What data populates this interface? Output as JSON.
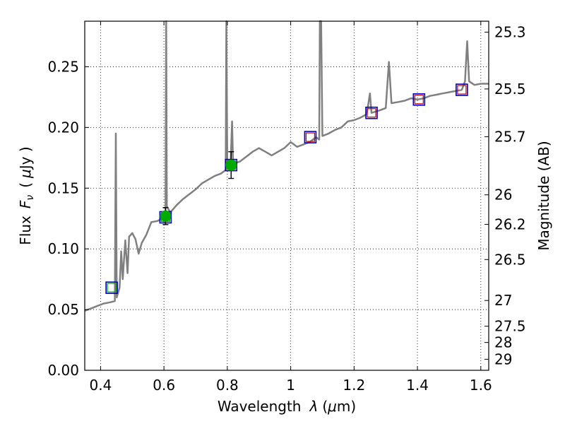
{
  "chart_data": {
    "type": "line",
    "xlabel": "Wavelength",
    "xlabel_symbol": "λ",
    "xlabel_unit_open": "(",
    "xlabel_unit_mu": "μ",
    "xlabel_unit_close": "m)",
    "ylabel": "Flux",
    "ylabel_symbol": "F",
    "ylabel_subscript": "ν",
    "ylabel_unit_open": "(",
    "ylabel_unit_mu": "μ",
    "ylabel_unit_close": "Jy )",
    "y2label": "Magnitude (AB)",
    "xlim": [
      0.35,
      1.625
    ],
    "ylim": [
      0.0,
      0.2875
    ],
    "grid": true,
    "x_ticks": [
      {
        "value": 0.4,
        "label": "0.4"
      },
      {
        "value": 0.6,
        "label": "0.6"
      },
      {
        "value": 0.8,
        "label": "0.8"
      },
      {
        "value": 1.0,
        "label": "1"
      },
      {
        "value": 1.2,
        "label": "1.2"
      },
      {
        "value": 1.4,
        "label": "1.4"
      },
      {
        "value": 1.6,
        "label": "1.6"
      }
    ],
    "y_ticks": [
      {
        "value": 0.0,
        "label": "0.00"
      },
      {
        "value": 0.05,
        "label": "0.05"
      },
      {
        "value": 0.1,
        "label": "0.10"
      },
      {
        "value": 0.15,
        "label": "0.15"
      },
      {
        "value": 0.2,
        "label": "0.20"
      },
      {
        "value": 0.25,
        "label": "0.25"
      }
    ],
    "y2_ticks": [
      {
        "flux": 0.2785,
        "label": "25.3"
      },
      {
        "flux": 0.2317,
        "label": "25.5"
      },
      {
        "flux": 0.1924,
        "label": "25.7"
      },
      {
        "flux": 0.1445,
        "label": "26"
      },
      {
        "flux": 0.1202,
        "label": "26.2"
      },
      {
        "flux": 0.0912,
        "label": "26.5"
      },
      {
        "flux": 0.0575,
        "label": "27"
      },
      {
        "flux": 0.0363,
        "label": "27.5"
      },
      {
        "flux": 0.0229,
        "label": "28"
      },
      {
        "flux": 0.0091,
        "label": "29"
      }
    ],
    "model_spectrum": {
      "name": "model SED",
      "color": "#808080",
      "points": [
        [
          0.35,
          0.049
        ],
        [
          0.37,
          0.051
        ],
        [
          0.39,
          0.053
        ],
        [
          0.41,
          0.055
        ],
        [
          0.43,
          0.056
        ],
        [
          0.445,
          0.057
        ],
        [
          0.448,
          0.195
        ],
        [
          0.451,
          0.06
        ],
        [
          0.46,
          0.068
        ],
        [
          0.465,
          0.098
        ],
        [
          0.47,
          0.075
        ],
        [
          0.478,
          0.107
        ],
        [
          0.485,
          0.08
        ],
        [
          0.49,
          0.11
        ],
        [
          0.5,
          0.113
        ],
        [
          0.51,
          0.108
        ],
        [
          0.52,
          0.096
        ],
        [
          0.53,
          0.105
        ],
        [
          0.545,
          0.112
        ],
        [
          0.56,
          0.122
        ],
        [
          0.58,
          0.123
        ],
        [
          0.6,
          0.126
        ],
        [
          0.605,
          0.13
        ],
        [
          0.607,
          0.2875
        ],
        [
          0.609,
          0.135
        ],
        [
          0.62,
          0.13
        ],
        [
          0.64,
          0.136
        ],
        [
          0.66,
          0.141
        ],
        [
          0.68,
          0.145
        ],
        [
          0.7,
          0.149
        ],
        [
          0.72,
          0.154
        ],
        [
          0.74,
          0.157
        ],
        [
          0.76,
          0.16
        ],
        [
          0.78,
          0.162
        ],
        [
          0.795,
          0.165
        ],
        [
          0.797,
          0.2875
        ],
        [
          0.8,
          0.166
        ],
        [
          0.81,
          0.168
        ],
        [
          0.815,
          0.205
        ],
        [
          0.818,
          0.17
        ],
        [
          0.84,
          0.172
        ],
        [
          0.86,
          0.176
        ],
        [
          0.88,
          0.18
        ],
        [
          0.9,
          0.183
        ],
        [
          0.92,
          0.18
        ],
        [
          0.94,
          0.177
        ],
        [
          0.96,
          0.18
        ],
        [
          0.98,
          0.183
        ],
        [
          1.0,
          0.188
        ],
        [
          1.02,
          0.184
        ],
        [
          1.04,
          0.186
        ],
        [
          1.06,
          0.188
        ],
        [
          1.08,
          0.192
        ],
        [
          1.09,
          0.19
        ],
        [
          1.092,
          0.2875
        ],
        [
          1.096,
          0.2875
        ],
        [
          1.1,
          0.193
        ],
        [
          1.12,
          0.195
        ],
        [
          1.14,
          0.198
        ],
        [
          1.16,
          0.2
        ],
        [
          1.18,
          0.205
        ],
        [
          1.2,
          0.206
        ],
        [
          1.22,
          0.208
        ],
        [
          1.24,
          0.211
        ],
        [
          1.25,
          0.228
        ],
        [
          1.255,
          0.212
        ],
        [
          1.28,
          0.214
        ],
        [
          1.3,
          0.216
        ],
        [
          1.31,
          0.254
        ],
        [
          1.318,
          0.22
        ],
        [
          1.34,
          0.221
        ],
        [
          1.36,
          0.222
        ],
        [
          1.38,
          0.224
        ],
        [
          1.4,
          0.223
        ],
        [
          1.42,
          0.224
        ],
        [
          1.44,
          0.226
        ],
        [
          1.46,
          0.227
        ],
        [
          1.48,
          0.228
        ],
        [
          1.5,
          0.229
        ],
        [
          1.52,
          0.23
        ],
        [
          1.54,
          0.231
        ],
        [
          1.55,
          0.238
        ],
        [
          1.557,
          0.271
        ],
        [
          1.563,
          0.238
        ],
        [
          1.58,
          0.235
        ],
        [
          1.6,
          0.236
        ],
        [
          1.625,
          0.236
        ]
      ]
    },
    "observed_points": {
      "name": "observed flux",
      "color": "#00aa00",
      "points": [
        {
          "x": 0.605,
          "y": 0.127,
          "err": 0.007
        },
        {
          "x": 0.812,
          "y": 0.169,
          "err": 0.011
        }
      ]
    },
    "model_bandpass_fluxes": {
      "name": "model band fluxes",
      "edge_color": "#0000cc",
      "inner_colors": [
        "#00aa00",
        "#cc0000"
      ],
      "points": [
        {
          "x": 0.435,
          "y": 0.068,
          "inner": 0
        },
        {
          "x": 0.605,
          "y": 0.126,
          "inner": 0
        },
        {
          "x": 0.812,
          "y": 0.169,
          "inner": 0
        },
        {
          "x": 1.062,
          "y": 0.192,
          "inner": 1
        },
        {
          "x": 1.255,
          "y": 0.212,
          "inner": 1
        },
        {
          "x": 1.405,
          "y": 0.223,
          "inner": 1
        },
        {
          "x": 1.54,
          "y": 0.231,
          "inner": 1
        }
      ]
    }
  }
}
